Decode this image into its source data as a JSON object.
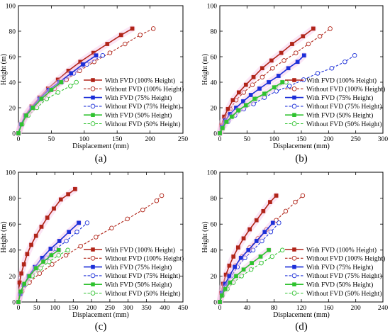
{
  "chart_data": [
    {
      "type": "line",
      "panel_label": "(a)",
      "xlabel": "Displacement (mm)",
      "ylabel": "Height (m)",
      "xlim": [
        0,
        250
      ],
      "ylim": [
        0,
        100
      ],
      "xticks": [
        0,
        50,
        100,
        150,
        200,
        250
      ],
      "yticks": [
        0,
        20,
        40,
        60,
        80,
        100
      ],
      "legend_position": "bottom-right",
      "series": [
        {
          "name": "With FVD (100% Height)",
          "color": "#b02418",
          "style": "solid",
          "marker": "square",
          "x": [
            0,
            4,
            10,
            20,
            32,
            45,
            60,
            76,
            94,
            114,
            135,
            156,
            173
          ],
          "y": [
            0,
            7,
            14,
            21,
            28,
            35,
            42,
            49,
            56,
            63,
            70,
            77,
            82
          ]
        },
        {
          "name": "Without FVD (100% Height)",
          "color": "#b02418",
          "style": "dashed",
          "marker": "circle",
          "x": [
            0,
            5,
            13,
            25,
            39,
            55,
            73,
            93,
            115,
            139,
            162,
            185,
            205
          ],
          "y": [
            0,
            7,
            14,
            21,
            28,
            35,
            42,
            49,
            56,
            63,
            70,
            77,
            82
          ]
        },
        {
          "name": "With FVD (75% Height)",
          "color": "#1c2fd8",
          "style": "solid",
          "marker": "square",
          "x": [
            0,
            4,
            11,
            20,
            32,
            46,
            62,
            80,
            98,
            118
          ],
          "y": [
            0,
            7,
            14,
            20,
            27,
            34,
            40,
            47,
            54,
            61
          ]
        },
        {
          "name": "Without FVD (75% Height)",
          "color": "#1c2fd8",
          "style": "dashed",
          "marker": "circle",
          "x": [
            0,
            4,
            12,
            22,
            35,
            50,
            66,
            84,
            104,
            128
          ],
          "y": [
            0,
            7,
            14,
            20,
            27,
            34,
            40,
            47,
            54,
            61
          ]
        },
        {
          "name": "With FVD (50% Height)",
          "color": "#2fc22f",
          "style": "solid",
          "marker": "square",
          "x": [
            0,
            5,
            12,
            22,
            35,
            50,
            65
          ],
          "y": [
            0,
            7,
            14,
            20,
            27,
            34,
            40
          ]
        },
        {
          "name": "Without FVD (50% Height)",
          "color": "#2fc22f",
          "style": "dashed",
          "marker": "circle",
          "x": [
            0,
            6,
            15,
            28,
            43,
            60,
            79,
            88
          ],
          "y": [
            0,
            7,
            14,
            20,
            27,
            32,
            37,
            40
          ]
        }
      ]
    },
    {
      "type": "line",
      "panel_label": "(b)",
      "xlabel": "Displacement (mm)",
      "ylabel": "Height (m)",
      "xlim": [
        0,
        300
      ],
      "ylim": [
        0,
        100
      ],
      "xticks": [
        0,
        50,
        100,
        150,
        200,
        250,
        300
      ],
      "yticks": [
        0,
        20,
        40,
        60,
        80,
        100
      ],
      "legend_position": "bottom-right",
      "series": [
        {
          "name": "With FVD (100% Height)",
          "color": "#b02418",
          "style": "solid",
          "marker": "square",
          "x": [
            0,
            3,
            8,
            15,
            24,
            35,
            48,
            62,
            78,
            95,
            113,
            133,
            153,
            172
          ],
          "y": [
            0,
            6,
            13,
            19,
            26,
            32,
            38,
            44,
            51,
            57,
            63,
            70,
            76,
            82
          ]
        },
        {
          "name": "Without FVD (100% Height)",
          "color": "#b02418",
          "style": "dashed",
          "marker": "circle",
          "x": [
            0,
            4,
            10,
            19,
            30,
            44,
            60,
            78,
            97,
            118,
            140,
            163,
            184,
            203
          ],
          "y": [
            0,
            6,
            13,
            19,
            26,
            32,
            38,
            44,
            51,
            57,
            63,
            70,
            76,
            82
          ]
        },
        {
          "name": "With FVD (75% Height)",
          "color": "#1c2fd8",
          "style": "solid",
          "marker": "square",
          "x": [
            0,
            4,
            10,
            19,
            30,
            43,
            57,
            73,
            90,
            108,
            126,
            143,
            155
          ],
          "y": [
            0,
            5,
            10,
            15,
            20,
            25,
            30,
            35,
            40,
            45,
            51,
            56,
            61
          ]
        },
        {
          "name": "Without FVD (75% Height)",
          "color": "#1c2fd8",
          "style": "dashed",
          "marker": "circle",
          "x": [
            0,
            6,
            15,
            28,
            44,
            62,
            82,
            104,
            128,
            154,
            180,
            206,
            230,
            248
          ],
          "y": [
            0,
            5,
            9,
            14,
            19,
            23,
            28,
            33,
            37,
            42,
            47,
            51,
            56,
            61
          ]
        },
        {
          "name": "With FVD (50% Height)",
          "color": "#2fc22f",
          "style": "solid",
          "marker": "square",
          "x": [
            0,
            5,
            12,
            22,
            34,
            48,
            64,
            82,
            100,
            115
          ],
          "y": [
            0,
            4,
            9,
            13,
            18,
            22,
            27,
            31,
            36,
            40
          ]
        },
        {
          "name": "Without FVD (50% Height)",
          "color": "#2fc22f",
          "style": "dashed",
          "marker": "circle",
          "x": [
            0,
            5,
            13,
            23,
            35,
            50,
            66,
            84,
            102,
            122
          ],
          "y": [
            0,
            4,
            9,
            13,
            18,
            22,
            27,
            31,
            36,
            40
          ]
        }
      ]
    },
    {
      "type": "line",
      "panel_label": "(c)",
      "xlabel": "Displacement (mm)",
      "ylabel": "Height (m)",
      "xlim": [
        0,
        450
      ],
      "ylim": [
        0,
        100
      ],
      "xticks": [
        0,
        50,
        100,
        150,
        200,
        250,
        300,
        350,
        400,
        450
      ],
      "yticks": [
        0,
        20,
        40,
        60,
        80,
        100
      ],
      "legend_position": "bottom-right",
      "series": [
        {
          "name": "With FVD (100% Height)",
          "color": "#b02418",
          "style": "solid",
          "marker": "square",
          "x": [
            0,
            3,
            8,
            15,
            24,
            35,
            48,
            63,
            79,
            97,
            116,
            136,
            155
          ],
          "y": [
            0,
            15,
            22,
            29,
            37,
            44,
            51,
            58,
            65,
            72,
            79,
            83,
            87
          ]
        },
        {
          "name": "Without FVD (100% Height)",
          "color": "#b02418",
          "style": "dashed",
          "marker": "circle",
          "x": [
            0,
            10,
            30,
            58,
            92,
            130,
            170,
            212,
            255,
            298,
            340,
            378,
            392
          ],
          "y": [
            0,
            8,
            15,
            22,
            29,
            36,
            43,
            50,
            57,
            64,
            71,
            78,
            82
          ]
        },
        {
          "name": "With FVD (75% Height)",
          "color": "#1c2fd8",
          "style": "solid",
          "marker": "square",
          "x": [
            0,
            5,
            14,
            28,
            45,
            65,
            88,
            112,
            138,
            165
          ],
          "y": [
            0,
            6,
            13,
            20,
            27,
            34,
            41,
            47,
            54,
            61
          ]
        },
        {
          "name": "Without FVD (75% Height)",
          "color": "#1c2fd8",
          "style": "dashed",
          "marker": "circle",
          "x": [
            0,
            6,
            17,
            33,
            53,
            77,
            103,
            131,
            160,
            188
          ],
          "y": [
            0,
            6,
            13,
            20,
            27,
            34,
            41,
            47,
            54,
            61
          ]
        },
        {
          "name": "With FVD (50% Height)",
          "color": "#2fc22f",
          "style": "solid",
          "marker": "square",
          "x": [
            0,
            6,
            16,
            30,
            48,
            68,
            90,
            110
          ],
          "y": [
            0,
            8,
            14,
            20,
            26,
            31,
            36,
            40
          ]
        },
        {
          "name": "Without FVD (50% Height)",
          "color": "#2fc22f",
          "style": "dashed",
          "marker": "circle",
          "x": [
            0,
            8,
            21,
            38,
            60,
            84,
            110,
            135
          ],
          "y": [
            0,
            8,
            14,
            20,
            26,
            31,
            36,
            40
          ]
        }
      ]
    },
    {
      "type": "line",
      "panel_label": "(d)",
      "xlabel": "Displacement (mm)",
      "ylabel": "Height (m)",
      "xlim": [
        0,
        240
      ],
      "ylim": [
        0,
        100
      ],
      "xticks": [
        0,
        40,
        80,
        120,
        160,
        200,
        240
      ],
      "yticks": [
        0,
        20,
        40,
        60,
        80,
        100
      ],
      "legend_position": "bottom-right",
      "series": [
        {
          "name": "With FVD (100% Height)",
          "color": "#b02418",
          "style": "solid",
          "marker": "square",
          "x": [
            0,
            2,
            5,
            9,
            14,
            20,
            27,
            35,
            44,
            54,
            64,
            74,
            83
          ],
          "y": [
            0,
            7,
            14,
            21,
            28,
            35,
            42,
            49,
            56,
            63,
            70,
            77,
            82
          ]
        },
        {
          "name": "Without FVD (100% Height)",
          "color": "#b02418",
          "style": "dashed",
          "marker": "circle",
          "x": [
            0,
            3,
            8,
            15,
            23,
            33,
            44,
            56,
            69,
            83,
            97,
            111,
            122
          ],
          "y": [
            0,
            7,
            14,
            21,
            28,
            35,
            42,
            49,
            56,
            63,
            70,
            77,
            82
          ]
        },
        {
          "name": "With FVD (75% Height)",
          "color": "#1c2fd8",
          "style": "solid",
          "marker": "square",
          "x": [
            0,
            3,
            8,
            14,
            22,
            31,
            42,
            54,
            66,
            78
          ],
          "y": [
            0,
            7,
            14,
            20,
            27,
            34,
            40,
            47,
            54,
            61
          ]
        },
        {
          "name": "Without FVD (75% Height)",
          "color": "#1c2fd8",
          "style": "dashed",
          "marker": "circle",
          "x": [
            0,
            3,
            9,
            17,
            26,
            37,
            49,
            62,
            75,
            87
          ],
          "y": [
            0,
            7,
            14,
            20,
            27,
            34,
            40,
            47,
            54,
            61
          ]
        },
        {
          "name": "With FVD (50% Height)",
          "color": "#2fc22f",
          "style": "solid",
          "marker": "square",
          "x": [
            0,
            3,
            8,
            15,
            24,
            35,
            47,
            60,
            72
          ],
          "y": [
            0,
            5,
            10,
            15,
            20,
            25,
            30,
            35,
            40
          ]
        },
        {
          "name": "Without FVD (50% Height)",
          "color": "#2fc22f",
          "style": "dashed",
          "marker": "circle",
          "x": [
            0,
            4,
            11,
            20,
            32,
            46,
            61,
            77,
            92
          ],
          "y": [
            0,
            5,
            10,
            15,
            20,
            25,
            30,
            35,
            40
          ]
        }
      ]
    }
  ]
}
